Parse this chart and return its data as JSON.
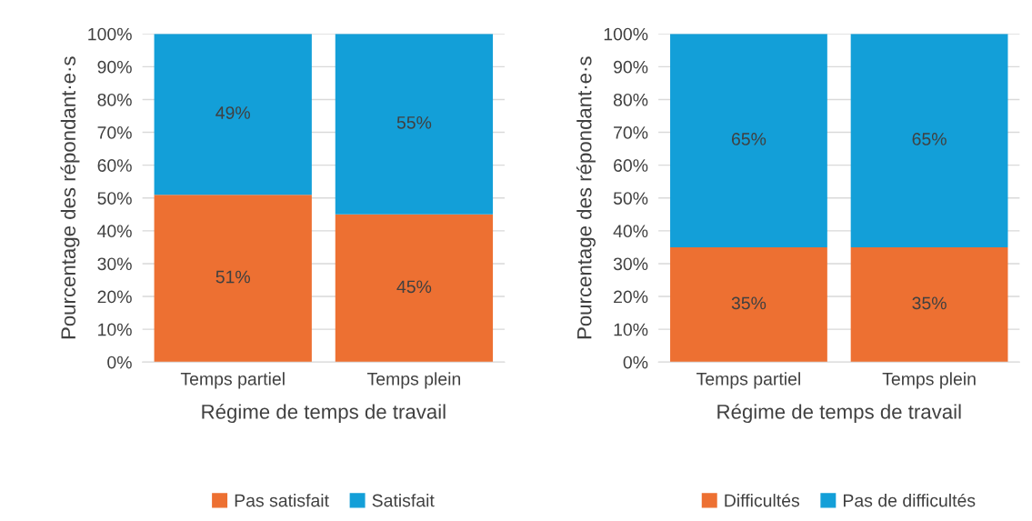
{
  "chart_data": [
    {
      "type": "bar",
      "stacked": true,
      "categories": [
        "Temps partiel",
        "Temps plein"
      ],
      "xlabel": "Régime de temps de travail",
      "ylabel": "Pourcentage des répondant·e·s",
      "ylim": [
        0,
        100
      ],
      "yticks": [
        {
          "value": 0,
          "label": "0%"
        },
        {
          "value": 10,
          "label": "10%"
        },
        {
          "value": 20,
          "label": "20%"
        },
        {
          "value": 30,
          "label": "30%"
        },
        {
          "value": 40,
          "label": "40%"
        },
        {
          "value": 50,
          "label": "50%"
        },
        {
          "value": 60,
          "label": "60%"
        },
        {
          "value": 70,
          "label": "70%"
        },
        {
          "value": 80,
          "label": "80%"
        },
        {
          "value": 90,
          "label": "90%"
        },
        {
          "value": 100,
          "label": "100%"
        }
      ],
      "grid": "y",
      "legend": "bottom",
      "series": [
        {
          "name": "Pas satisfait",
          "color": "#ed7032",
          "values": [
            51,
            45
          ],
          "value_labels": [
            "51%",
            "45%"
          ]
        },
        {
          "name": "Satisfait",
          "color": "#139fd8",
          "values": [
            49,
            55
          ],
          "value_labels": [
            "49%",
            "55%"
          ]
        }
      ]
    },
    {
      "type": "bar",
      "stacked": true,
      "categories": [
        "Temps partiel",
        "Temps plein"
      ],
      "xlabel": "Régime de temps de travail",
      "ylabel": "Pourcentage des répondant·e·s",
      "ylim": [
        0,
        100
      ],
      "yticks": [
        {
          "value": 0,
          "label": "0%"
        },
        {
          "value": 10,
          "label": "10%"
        },
        {
          "value": 20,
          "label": "20%"
        },
        {
          "value": 30,
          "label": "30%"
        },
        {
          "value": 40,
          "label": "40%"
        },
        {
          "value": 50,
          "label": "50%"
        },
        {
          "value": 60,
          "label": "60%"
        },
        {
          "value": 70,
          "label": "70%"
        },
        {
          "value": 80,
          "label": "80%"
        },
        {
          "value": 90,
          "label": "90%"
        },
        {
          "value": 100,
          "label": "100%"
        }
      ],
      "grid": "y",
      "legend": "bottom",
      "series": [
        {
          "name": "Difficultés",
          "color": "#ed7032",
          "values": [
            35,
            35
          ],
          "value_labels": [
            "35%",
            "35%"
          ]
        },
        {
          "name": "Pas de difficultés",
          "color": "#139fd8",
          "values": [
            65,
            65
          ],
          "value_labels": [
            "65%",
            "65%"
          ]
        }
      ]
    }
  ]
}
